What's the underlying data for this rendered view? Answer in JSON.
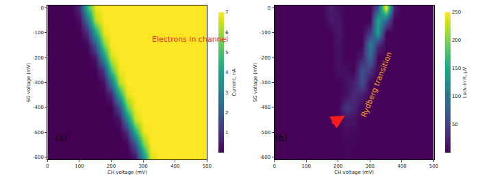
{
  "chart_data": [
    {
      "type": "heatmap",
      "xlabel": "CH voltage (mV)",
      "ylabel": "SG voltage (mV)",
      "x": [
        0,
        25,
        50,
        75,
        100,
        125,
        150,
        175,
        200,
        225,
        250,
        275,
        300,
        325,
        350,
        375,
        400,
        425,
        450,
        475,
        500
      ],
      "y": [
        0,
        -50,
        -100,
        -150,
        -200,
        -250,
        -300,
        -350,
        -400,
        -450,
        -500,
        -550,
        -600
      ],
      "z": [
        [
          0,
          0,
          0,
          0,
          0.8,
          4.5,
          6.8,
          7,
          7,
          7,
          7,
          7,
          7,
          7,
          7,
          7,
          7,
          7,
          7,
          7,
          7
        ],
        [
          0,
          0,
          0,
          0,
          0.2,
          2.5,
          6.2,
          7,
          7,
          7,
          7,
          7,
          7,
          7,
          7,
          7,
          7,
          7,
          7,
          7,
          7
        ],
        [
          0,
          0,
          0,
          0,
          0,
          0.8,
          4,
          6.7,
          7,
          7,
          7,
          7,
          7,
          7,
          7,
          7,
          7,
          7,
          7,
          7,
          7
        ],
        [
          0,
          0,
          0,
          0,
          0,
          0.1,
          1.8,
          5.5,
          7,
          7,
          7,
          7,
          7,
          7,
          7,
          7,
          7,
          7,
          7,
          7,
          7
        ],
        [
          0,
          0,
          0,
          0,
          0,
          0,
          0.4,
          3.5,
          6.5,
          7,
          7,
          7,
          7,
          7,
          7,
          7,
          7,
          7,
          7,
          7,
          7
        ],
        [
          0,
          0,
          0,
          0,
          0,
          0,
          0,
          1.2,
          5,
          6.9,
          7,
          7,
          7,
          7,
          7,
          7,
          7,
          7,
          7,
          7,
          7
        ],
        [
          0,
          0,
          0,
          0,
          0,
          0,
          0,
          0.2,
          2.5,
          6.2,
          7,
          7,
          7,
          7,
          7,
          7,
          7,
          7,
          7,
          7,
          7
        ],
        [
          0,
          0,
          0,
          0,
          0,
          0,
          0,
          0,
          0.6,
          4,
          6.7,
          7,
          7,
          7,
          7,
          7,
          7,
          7,
          7,
          7,
          7
        ],
        [
          0,
          0,
          0,
          0,
          0,
          0,
          0,
          0,
          0,
          1.5,
          5.3,
          6.9,
          7,
          7,
          7,
          7,
          7,
          7,
          7,
          7,
          7
        ],
        [
          0,
          0,
          0,
          0,
          0,
          0,
          0,
          0,
          0,
          0.3,
          3,
          6.4,
          7,
          7,
          7,
          7,
          7,
          7,
          7,
          7,
          7
        ],
        [
          0,
          0,
          0,
          0,
          0,
          0,
          0,
          0,
          0,
          0,
          0.8,
          4.3,
          6.8,
          7,
          7,
          7,
          7,
          7,
          7,
          7,
          7
        ],
        [
          0,
          0,
          0,
          0,
          0,
          0,
          0,
          0,
          0,
          0,
          0,
          1.8,
          5.5,
          7,
          7,
          7,
          7,
          7,
          7,
          7,
          7
        ],
        [
          0,
          0,
          0,
          0,
          0,
          0,
          0,
          0,
          0,
          0,
          0,
          0.3,
          3.5,
          6.6,
          7,
          7,
          7,
          7,
          7,
          7,
          7
        ]
      ],
      "xlim": [
        0,
        500
      ],
      "ylim": [
        -610,
        10
      ],
      "xticks": [
        0,
        100,
        200,
        300,
        400,
        500
      ],
      "yticks": [
        0,
        -100,
        -200,
        -300,
        -400,
        -500,
        -600
      ],
      "colorbar": {
        "label": "Current, nA",
        "range": [
          0,
          7
        ],
        "ticks": [
          1,
          2,
          3,
          4,
          5,
          6,
          7
        ]
      },
      "annotations": [
        {
          "text": "Electrons in channel",
          "color": "#ff1a1a"
        },
        {
          "text": "(a)",
          "color": "#000000"
        }
      ]
    },
    {
      "type": "heatmap",
      "xlabel": "CH voltage (mV)",
      "ylabel": "SG voltage (mV)",
      "x": [
        0,
        25,
        50,
        75,
        100,
        125,
        150,
        175,
        200,
        225,
        250,
        275,
        300,
        325,
        350,
        375,
        400,
        425,
        450,
        475,
        500
      ],
      "y": [
        0,
        -50,
        -100,
        -150,
        -200,
        -250,
        -300,
        -350,
        -400,
        -450,
        -500,
        -550,
        -600
      ],
      "z": [
        [
          2,
          2,
          2,
          2,
          2,
          2,
          2,
          20,
          10,
          2,
          2,
          2,
          2,
          60,
          250,
          20,
          2,
          2,
          2,
          2,
          2
        ],
        [
          2,
          2,
          2,
          2,
          2,
          2,
          2,
          15,
          15,
          2,
          2,
          2,
          2,
          150,
          80,
          2,
          2,
          2,
          2,
          2,
          2
        ],
        [
          2,
          2,
          2,
          2,
          2,
          2,
          2,
          2,
          15,
          2,
          2,
          2,
          40,
          140,
          2,
          2,
          2,
          2,
          2,
          2,
          2
        ],
        [
          2,
          2,
          2,
          2,
          2,
          2,
          2,
          2,
          12,
          2,
          2,
          2,
          110,
          30,
          2,
          2,
          2,
          2,
          2,
          2,
          2
        ],
        [
          2,
          2,
          2,
          2,
          2,
          2,
          2,
          2,
          12,
          2,
          2,
          20,
          90,
          2,
          2,
          2,
          2,
          2,
          2,
          2,
          2
        ],
        [
          2,
          2,
          2,
          2,
          2,
          2,
          2,
          2,
          10,
          8,
          2,
          60,
          40,
          2,
          2,
          2,
          2,
          2,
          2,
          2,
          2
        ],
        [
          2,
          2,
          2,
          2,
          2,
          2,
          2,
          2,
          2,
          10,
          20,
          60,
          2,
          2,
          2,
          2,
          2,
          2,
          2,
          2,
          2
        ],
        [
          2,
          2,
          2,
          2,
          2,
          2,
          2,
          2,
          2,
          9,
          30,
          20,
          2,
          2,
          2,
          2,
          2,
          2,
          2,
          2,
          2
        ],
        [
          2,
          2,
          2,
          2,
          2,
          2,
          2,
          2,
          2,
          40,
          25,
          2,
          2,
          2,
          2,
          2,
          2,
          2,
          2,
          2,
          2
        ],
        [
          2,
          2,
          2,
          2,
          2,
          2,
          2,
          2,
          2,
          12,
          12,
          2,
          2,
          2,
          2,
          2,
          2,
          2,
          2,
          2,
          2
        ],
        [
          2,
          2,
          2,
          2,
          2,
          2,
          2,
          2,
          2,
          8,
          6,
          2,
          2,
          2,
          2,
          2,
          2,
          2,
          2,
          2,
          2
        ],
        [
          2,
          2,
          2,
          2,
          2,
          2,
          2,
          2,
          2,
          5,
          5,
          2,
          2,
          2,
          2,
          2,
          2,
          2,
          2,
          2,
          2
        ],
        [
          2,
          2,
          2,
          2,
          2,
          2,
          2,
          2,
          2,
          4,
          2,
          2,
          2,
          2,
          2,
          2,
          2,
          2,
          2,
          2,
          2
        ]
      ],
      "xlim": [
        0,
        500
      ],
      "ylim": [
        -610,
        10
      ],
      "xticks": [
        0,
        100,
        200,
        300,
        400,
        500
      ],
      "yticks": [
        0,
        -100,
        -200,
        -300,
        -400,
        -500,
        -600
      ],
      "colorbar": {
        "label": "Lock-in R, μV",
        "range": [
          0,
          250
        ],
        "ticks": [
          50,
          100,
          150,
          200,
          250
        ]
      },
      "annotations": [
        {
          "text": "Rydberg transition",
          "color": "#ffa726"
        },
        {
          "text": "(b)",
          "color": "#000000"
        }
      ]
    }
  ]
}
